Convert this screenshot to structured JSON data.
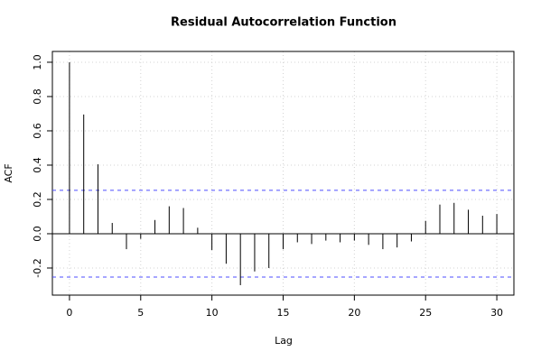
{
  "chart_data": {
    "type": "acf",
    "title": "Residual Autocorrelation Function",
    "x_label": "Lag",
    "y_label": "ACF",
    "x": [
      0,
      1,
      2,
      3,
      4,
      5,
      6,
      7,
      8,
      9,
      10,
      11,
      12,
      13,
      14,
      15,
      16,
      17,
      18,
      19,
      20,
      21,
      22,
      23,
      24,
      25,
      26,
      27,
      28,
      29,
      30
    ],
    "values": [
      1.0,
      0.695,
      0.405,
      0.063,
      -0.09,
      -0.03,
      0.08,
      0.16,
      0.15,
      0.035,
      -0.095,
      -0.175,
      -0.3,
      -0.22,
      -0.2,
      -0.09,
      -0.05,
      -0.06,
      -0.04,
      -0.05,
      -0.04,
      -0.065,
      -0.09,
      -0.08,
      -0.045,
      0.075,
      0.17,
      0.18,
      0.14,
      0.105,
      0.115
    ],
    "color": "#000000",
    "ci_lines": [
      0.253,
      -0.253
    ],
    "ci_color": "#4d4dff",
    "xlim": [
      -1.2,
      31.2
    ],
    "ylim": [
      -0.358,
      1.063
    ],
    "xticks": [
      0,
      5,
      10,
      15,
      20,
      25,
      30
    ],
    "yticks": [
      {
        "value": 1.0,
        "label": "1.0"
      },
      0.8,
      0.6,
      0.4,
      0.2,
      {
        "value": 0.0,
        "label": "0.0"
      },
      -0.2
    ],
    "grid": true
  }
}
